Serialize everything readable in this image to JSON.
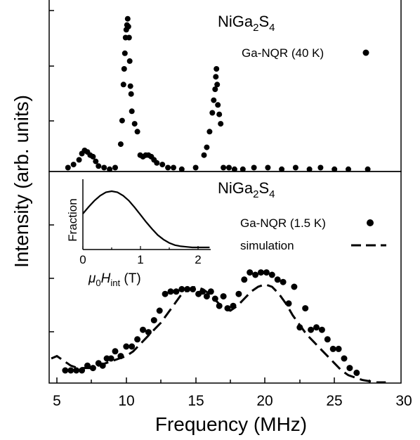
{
  "figure": {
    "ylabel": "Intensity (arb. units)",
    "xlabel": "Frequency (MHz)",
    "xticks": [
      "5",
      "10",
      "15",
      "20",
      "25",
      "30"
    ]
  },
  "chart_data": [
    {
      "type": "scatter",
      "title_parts": [
        "NiGa",
        "2",
        "S",
        "4"
      ],
      "legend": [
        {
          "label": "Ga-NQR (40 K)",
          "marker": "filled-circle"
        }
      ],
      "xlim": [
        4.5,
        30
      ],
      "ylim": [
        0,
        1.0
      ],
      "legend_position": "top-right",
      "series": [
        {
          "name": "Ga-NQR (40 K)",
          "style": "points",
          "x": [
            5.8,
            6.2,
            6.6,
            6.8,
            7.0,
            7.2,
            7.4,
            7.6,
            7.8,
            8.0,
            8.4,
            8.8,
            9.2,
            9.6,
            9.7,
            9.8,
            9.85,
            9.9,
            9.95,
            10.0,
            10.05,
            10.1,
            10.15,
            10.2,
            10.25,
            10.3,
            10.35,
            10.4,
            10.6,
            10.8,
            11.0,
            11.2,
            11.4,
            11.6,
            11.8,
            12.0,
            12.2,
            12.6,
            13.0,
            13.4,
            14.0,
            15.0,
            15.6,
            15.8,
            16.0,
            16.2,
            16.3,
            16.4,
            16.45,
            16.5,
            16.55,
            16.6,
            16.7,
            16.8,
            17.0,
            17.4,
            17.8,
            18.4,
            19.2,
            20.2,
            21.2,
            22.2,
            23.2,
            24.0,
            25.0,
            26.0,
            27.4
          ],
          "y": [
            0.02,
            0.04,
            0.07,
            0.11,
            0.13,
            0.12,
            0.1,
            0.09,
            0.06,
            0.03,
            0.02,
            0.01,
            0.02,
            0.17,
            0.32,
            0.55,
            0.65,
            0.75,
            0.85,
            0.9,
            0.93,
            0.97,
            0.92,
            0.85,
            0.7,
            0.54,
            0.49,
            0.38,
            0.3,
            0.25,
            0.1,
            0.09,
            0.1,
            0.1,
            0.09,
            0.07,
            0.05,
            0.04,
            0.02,
            0.02,
            0.01,
            0.02,
            0.1,
            0.15,
            0.25,
            0.37,
            0.45,
            0.52,
            0.6,
            0.65,
            0.55,
            0.42,
            0.36,
            0.3,
            0.02,
            0.02,
            0.01,
            0.01,
            0.02,
            0.02,
            0.01,
            0.02,
            0.01,
            0.02,
            0.01,
            0.01,
            0.01
          ]
        }
      ]
    },
    {
      "type": "scatter",
      "title_parts": [
        "NiGa",
        "2",
        "S",
        "4"
      ],
      "legend": [
        {
          "label": "Ga-NQR (1.5 K)",
          "marker": "filled-circle"
        },
        {
          "label": "simulation",
          "marker": "dashed-line"
        }
      ],
      "xlim": [
        4.5,
        30
      ],
      "ylim": [
        0,
        1.0
      ],
      "legend_position": "top-right",
      "series": [
        {
          "name": "Ga-NQR (1.5 K)",
          "style": "points",
          "x": [
            5.6,
            6.0,
            6.4,
            6.8,
            7.2,
            7.6,
            8.0,
            8.3,
            8.6,
            8.9,
            9.2,
            9.6,
            10.0,
            10.4,
            10.8,
            11.2,
            11.6,
            12.0,
            12.4,
            12.8,
            13.2,
            13.6,
            14.0,
            14.4,
            14.8,
            15.2,
            15.5,
            15.8,
            16.1,
            16.4,
            16.7,
            17.0,
            17.3,
            17.7,
            18.1,
            18.5,
            18.9,
            19.3,
            19.7,
            20.1,
            20.5,
            20.9,
            21.3,
            21.7,
            22.1,
            22.5,
            22.9,
            23.3,
            23.7,
            24.1,
            24.5,
            24.9,
            25.3,
            25.7,
            26.1,
            26.6
          ],
          "y": [
            0.05,
            0.05,
            0.05,
            0.05,
            0.07,
            0.06,
            0.08,
            0.07,
            0.1,
            0.1,
            0.13,
            0.11,
            0.15,
            0.15,
            0.18,
            0.22,
            0.21,
            0.26,
            0.3,
            0.37,
            0.38,
            0.38,
            0.39,
            0.39,
            0.39,
            0.37,
            0.38,
            0.36,
            0.38,
            0.35,
            0.32,
            0.36,
            0.31,
            0.32,
            0.37,
            0.43,
            0.46,
            0.45,
            0.46,
            0.46,
            0.45,
            0.43,
            0.42,
            0.33,
            0.4,
            0.23,
            0.31,
            0.22,
            0.23,
            0.22,
            0.18,
            0.14,
            0.14,
            0.1,
            0.06,
            0.04
          ]
        },
        {
          "name": "simulation",
          "style": "dashed-line",
          "x": [
            4.6,
            5.0,
            5.5,
            6.0,
            6.5,
            7.0,
            7.5,
            8.0,
            8.5,
            9.0,
            9.5,
            10.0,
            10.5,
            11.0,
            11.5,
            12.0,
            12.5,
            13.0,
            13.5,
            14.0,
            14.5,
            15.0,
            15.5,
            16.0,
            16.5,
            17.0,
            17.5,
            18.0,
            18.5,
            19.0,
            19.5,
            20.0,
            20.5,
            21.0,
            21.5,
            22.0,
            22.5,
            23.0,
            23.5,
            24.0,
            24.5,
            25.0,
            25.5,
            26.0,
            26.5,
            27.0,
            28.0,
            28.7
          ],
          "y": [
            0.1,
            0.11,
            0.09,
            0.07,
            0.06,
            0.06,
            0.06,
            0.07,
            0.08,
            0.09,
            0.1,
            0.11,
            0.13,
            0.16,
            0.19,
            0.22,
            0.25,
            0.29,
            0.33,
            0.37,
            0.39,
            0.4,
            0.39,
            0.37,
            0.34,
            0.31,
            0.3,
            0.32,
            0.35,
            0.38,
            0.4,
            0.41,
            0.4,
            0.37,
            0.33,
            0.28,
            0.24,
            0.2,
            0.17,
            0.14,
            0.11,
            0.08,
            0.05,
            0.03,
            0.02,
            0.01,
            0.0,
            0.0
          ]
        }
      ],
      "inset": {
        "type": "line",
        "ylabel": "Fraction",
        "xlabel_parts": [
          "μ",
          "0",
          "H",
          "int",
          " (T)"
        ],
        "xticks": [
          "0",
          "1",
          "2"
        ],
        "xlim": [
          0,
          2.2
        ],
        "ylim": [
          0,
          1.0
        ],
        "x": [
          0,
          0.1,
          0.2,
          0.3,
          0.4,
          0.5,
          0.6,
          0.7,
          0.8,
          0.9,
          1.0,
          1.1,
          1.2,
          1.3,
          1.4,
          1.5,
          1.6,
          1.7,
          1.8,
          1.9,
          2.0,
          2.2
        ],
        "y": [
          0.6,
          0.72,
          0.83,
          0.92,
          0.98,
          1.0,
          0.98,
          0.92,
          0.83,
          0.71,
          0.58,
          0.45,
          0.33,
          0.22,
          0.14,
          0.08,
          0.04,
          0.02,
          0.01,
          0.0,
          0.0,
          0.0
        ]
      }
    }
  ]
}
